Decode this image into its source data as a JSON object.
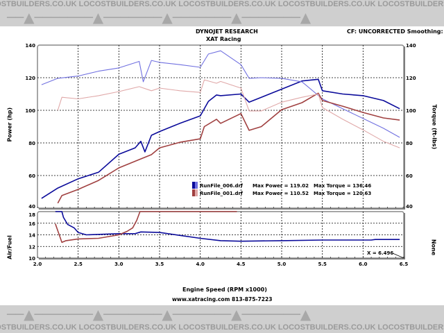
{
  "watermark": "LOCOSTBUILDERS.CO.UK",
  "header": {
    "title": "DYNOJET RESEARCH",
    "subtitle": "XAT Racing",
    "correction": "CF: UNCORRECTED  Smoothing: 5"
  },
  "footer": {
    "xlabel": "Engine Speed (RPM x1000)",
    "contact": "www.xatracing.com   813-875-7223"
  },
  "colors": {
    "run006_power": "#0a0a9a",
    "run006_torque": "#7070e0",
    "run001_power": "#a04040",
    "run001_torque": "#e0a8a8"
  },
  "chart_data": [
    {
      "type": "line",
      "ylabel": "Power (hp)",
      "y2label": "Torque (ft-lbs)",
      "xlim": [
        2.0,
        6.5
      ],
      "ylim": [
        40,
        140
      ],
      "y2lim": [
        40,
        140
      ],
      "xticks": [
        "2.0",
        "2.5",
        "3.0",
        "3.5",
        "4.0",
        "4.5",
        "5.0",
        "5.5",
        "6.0",
        "6.5"
      ],
      "yticks": [
        "40",
        "60",
        "80",
        "100",
        "120",
        "140"
      ],
      "grid": true,
      "legend": {
        "placement": "bottom-right",
        "entries": [
          {
            "file": "RunFile_006.drf",
            "power": "Max Power = 119.02",
            "torque": "Max Torque = 136.46"
          },
          {
            "file": "RunFile_001.drf",
            "power": "Max Power = 110.52",
            "torque": "Max Torque = 120.63"
          }
        ]
      },
      "series": [
        {
          "key": "run006_power",
          "x": [
            2.05,
            2.25,
            2.5,
            2.75,
            3.0,
            3.2,
            3.27,
            3.32,
            3.4,
            3.5,
            3.75,
            4.0,
            4.1,
            4.2,
            4.25,
            4.5,
            4.6,
            4.75,
            5.0,
            5.25,
            5.45,
            5.5,
            5.75,
            6.0,
            6.25,
            6.45
          ],
          "y": [
            46,
            52.3,
            58,
            62,
            73,
            77,
            81,
            74.5,
            84.7,
            87,
            92,
            96.6,
            105.5,
            109.4,
            109,
            110,
            105,
            108,
            113,
            118,
            119,
            112,
            110,
            109,
            106,
            101
          ]
        },
        {
          "key": "run006_torque",
          "x": [
            2.05,
            2.25,
            2.5,
            2.75,
            3.0,
            3.25,
            3.3,
            3.4,
            3.5,
            3.75,
            4.0,
            4.1,
            4.25,
            4.5,
            4.6,
            4.75,
            5.0,
            5.25,
            5.5,
            5.75,
            6.0,
            6.25,
            6.45
          ],
          "y": [
            115.7,
            119.6,
            121,
            124,
            126,
            130,
            117.5,
            130.6,
            129.4,
            128,
            126.4,
            134.5,
            136.5,
            128,
            119.6,
            120,
            119.6,
            117.5,
            107,
            101,
            95,
            89,
            83.4
          ]
        },
        {
          "key": "run001_power",
          "x": [
            2.25,
            2.3,
            2.5,
            2.75,
            3.0,
            3.25,
            3.4,
            3.5,
            3.75,
            4.0,
            4.05,
            4.2,
            4.25,
            4.5,
            4.6,
            4.75,
            5.0,
            5.25,
            5.45,
            5.5,
            5.75,
            6.0,
            6.25,
            6.45
          ],
          "y": [
            43,
            47.7,
            51.5,
            57,
            64.7,
            69.8,
            72.8,
            77,
            80.4,
            82.5,
            90,
            94.5,
            92,
            98,
            87.7,
            90,
            100.4,
            104.7,
            110.5,
            106,
            102.5,
            98.7,
            95.3,
            94
          ]
        },
        {
          "key": "run001_torque",
          "x": [
            2.25,
            2.3,
            2.5,
            2.75,
            3.0,
            3.25,
            3.4,
            3.5,
            3.75,
            4.0,
            4.05,
            4.2,
            4.25,
            4.5,
            4.6,
            4.75,
            5.0,
            5.25,
            5.45,
            5.5,
            5.75,
            6.0,
            6.25,
            6.45
          ],
          "y": [
            100,
            108,
            107,
            109,
            111.5,
            114.5,
            112,
            113.6,
            112,
            111,
            118.7,
            116.6,
            117.7,
            113.6,
            99.6,
            99.6,
            105,
            108,
            110,
            101.7,
            94.5,
            88,
            81,
            77
          ]
        }
      ]
    },
    {
      "type": "line",
      "ylabel": "Air/Fuel",
      "y2label": "None",
      "xlim": [
        2.0,
        6.5
      ],
      "ylim": [
        10,
        18
      ],
      "yticks": [
        "10",
        "12",
        "14",
        "16",
        "18"
      ],
      "grid": true,
      "annotation": "X = 6.496",
      "series": [
        {
          "key": "run006_power",
          "x": [
            2.22,
            2.3,
            2.32,
            2.37,
            2.45,
            2.5,
            2.6,
            3.0,
            3.2,
            3.27,
            3.5,
            3.75,
            4.0,
            4.25,
            4.5,
            5.0,
            5.5,
            6.1,
            6.15,
            6.45
          ],
          "y": [
            18,
            18,
            17,
            15.8,
            15.2,
            14.4,
            14,
            14.2,
            14.2,
            14.5,
            14.4,
            13.9,
            13.4,
            13.0,
            12.9,
            13.0,
            13.1,
            13.1,
            13.2,
            13.2
          ]
        },
        {
          "key": "run001_power",
          "x": [
            2.22,
            2.3,
            2.35,
            2.5,
            2.75,
            3.0,
            3.1,
            3.17,
            3.22,
            3.26,
            4.45
          ],
          "y": [
            15.9,
            12.7,
            13.0,
            13.3,
            13.4,
            14.0,
            14.6,
            15.2,
            16.5,
            18,
            18
          ]
        }
      ]
    }
  ]
}
